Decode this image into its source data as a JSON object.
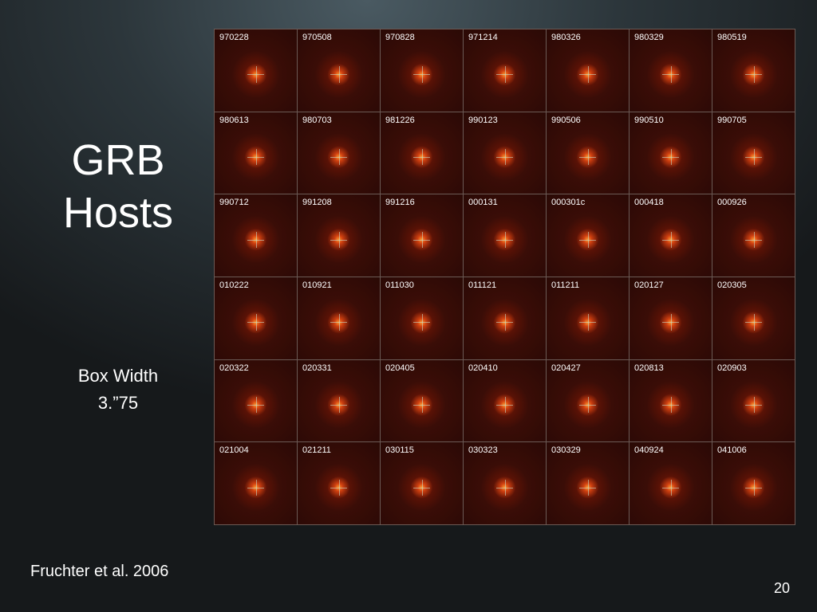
{
  "slide": {
    "title_lines": [
      "GRB",
      "Hosts"
    ],
    "note_lines": [
      "Box Width",
      "3.”75"
    ],
    "citation": "Fruchter et al. 2006",
    "page_number": "20"
  },
  "grid": {
    "rows": [
      [
        "970228",
        "970508",
        "970828",
        "971214",
        "980326",
        "980329",
        "980519"
      ],
      [
        "980613",
        "980703",
        "981226",
        "990123",
        "990506",
        "990510",
        "990705"
      ],
      [
        "990712",
        "991208",
        "991216",
        "000131",
        "000301c",
        "000418",
        "000926"
      ],
      [
        "010222",
        "010921",
        "011030",
        "011121",
        "011211",
        "020127",
        "020305"
      ],
      [
        "020322",
        "020331",
        "020405",
        "020410",
        "020427",
        "020813",
        "020903"
      ],
      [
        "021004",
        "021211",
        "030115",
        "030323",
        "030329",
        "040924",
        "041006"
      ]
    ]
  }
}
